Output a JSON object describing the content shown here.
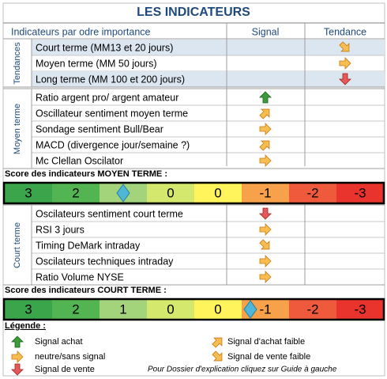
{
  "title": "LES INDICATEURS",
  "header": [
    "Indicateurs par odre importance",
    "Signal",
    "Tendance"
  ],
  "groups": [
    {
      "label": "Tendances",
      "rows": [
        "Court terme (MM13 et 20 jours)",
        "Moyen terme (MM 50 jours)",
        "Long terme (MM 100 et 200 jours)"
      ]
    },
    {
      "label": "Moyen terme",
      "rows": [
        "Ratio argent pro/ argent amateur",
        "Oscillateur sentiment moyen terme",
        "Sondage sentiment Bull/Bear",
        "MACD (divergence jour/semaine ?)",
        "Mc Clellan Oscilator"
      ]
    },
    {
      "label": "Court terme",
      "rows": [
        "Oscilateurs sentiment court terme",
        "RSI 3 jours",
        "Timing DeMark intraday",
        "Oscilateurs techniques intraday",
        "Ratio Volume NYSE"
      ]
    }
  ],
  "scores": [
    {
      "title": "Score des indicateurs MOYEN TERME :",
      "scale": [
        "3",
        "2",
        null,
        "0",
        "0",
        "-1",
        "-2",
        "-3"
      ]
    },
    {
      "title": "Score des indicateurs COURT TERME :",
      "scale": [
        "3",
        "2",
        "1",
        "0",
        "0",
        "-1",
        "-2",
        "-3"
      ]
    }
  ],
  "legend": {
    "title": "Légende :",
    "items": [
      "Signal achat",
      "neutre/sans signal",
      "Signal de vente",
      "Signal d'achat faible",
      "Signal de vente faible"
    ]
  },
  "note": "Pour Dossier d'explication cliquez sur Guide à gauche"
}
